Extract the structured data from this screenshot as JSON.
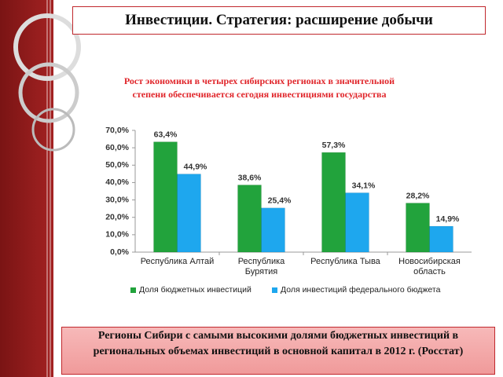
{
  "slide": {
    "title": "Инвестиции. Стратегия: расширение добычи",
    "caption": "Регионы Сибири с самыми высокими долями бюджетных инвестиций в региональных объемах инвестиций в основной капитал в 2012 г. (Росстат)"
  },
  "chart_data": {
    "type": "bar",
    "title": "Рост экономики в четырех сибирских регионах в значительной степени обеспечивается сегодня инвестициями государства",
    "categories": [
      "Республика Алтай",
      "Республика Бурятия",
      "Республика Тыва",
      "Новосибирская область"
    ],
    "series": [
      {
        "name": "Доля бюджетных инвестиций",
        "color": "#22a33c",
        "values": [
          63.4,
          38.6,
          57.3,
          28.2
        ],
        "value_labels": [
          "63,4%",
          "38,6%",
          "57,3%",
          "28,2%"
        ]
      },
      {
        "name": "Доля инвестиций федерального бюджета",
        "color": "#1ea7ee",
        "values": [
          44.9,
          25.4,
          34.1,
          14.9
        ],
        "value_labels": [
          "44,9%",
          "25,4%",
          "34,1%",
          "14,9%"
        ]
      }
    ],
    "ylim": [
      0,
      70
    ],
    "yticks": [
      {
        "value": 0,
        "label": "0,0%"
      },
      {
        "value": 10,
        "label": "10,0%"
      },
      {
        "value": 20,
        "label": "20,0%"
      },
      {
        "value": 30,
        "label": "30,0%"
      },
      {
        "value": 40,
        "label": "40,0%"
      },
      {
        "value": 50,
        "label": "50,0%"
      },
      {
        "value": 60,
        "label": "60,0%"
      },
      {
        "value": 70,
        "label": "70,0%"
      }
    ],
    "grid": false,
    "legend": "bottom"
  }
}
